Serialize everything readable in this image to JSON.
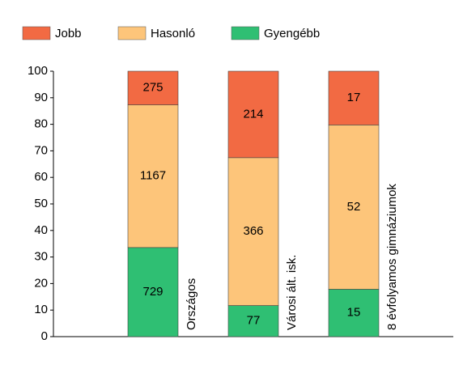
{
  "chart_data": {
    "type": "stacked_bar_percent",
    "categories": [
      "Országos",
      "Városi ált. isk.",
      "8 évfolyamos gimnáziumok"
    ],
    "series": [
      {
        "name": "Jobb",
        "color": "#f26a43",
        "values": [
          12.67,
          32.57,
          20.24
        ],
        "counts": [
          275,
          214,
          17
        ]
      },
      {
        "name": "Hasonló",
        "color": "#fdc57a",
        "values": [
          53.75,
          55.71,
          61.9
        ],
        "counts": [
          1167,
          366,
          52
        ]
      },
      {
        "name": "Gyengébb",
        "color": "#2fbf73",
        "values": [
          33.58,
          11.72,
          17.86
        ],
        "counts": [
          729,
          77,
          15
        ]
      }
    ],
    "ylim": [
      0,
      100
    ],
    "yticks": [
      0,
      10,
      20,
      30,
      40,
      50,
      60,
      70,
      80,
      90,
      100
    ],
    "grid": false,
    "legend": "top"
  }
}
